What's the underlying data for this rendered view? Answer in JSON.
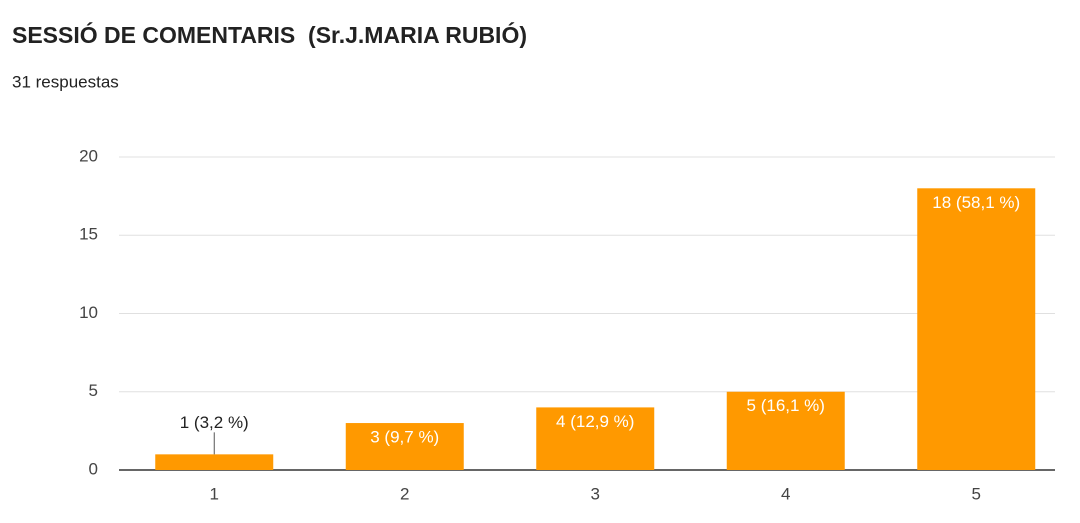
{
  "chart_data": {
    "type": "bar",
    "title": "SESSIÓ DE COMENTARIS  (Sr.J.MARIA RUBIÓ)",
    "subtitle": "31 respuestas",
    "categories": [
      "1",
      "2",
      "3",
      "4",
      "5"
    ],
    "values": [
      1,
      3,
      4,
      5,
      18
    ],
    "value_labels": [
      "1 (3,2 %)",
      "3 (9,7 %)",
      "4 (12,9 %)",
      "5 (16,1 %)",
      "18 (58,1 %)"
    ],
    "color": "#ff9900",
    "ylim": [
      0,
      20
    ],
    "yticks": [
      0,
      5,
      10,
      15,
      20
    ],
    "grid": true
  }
}
